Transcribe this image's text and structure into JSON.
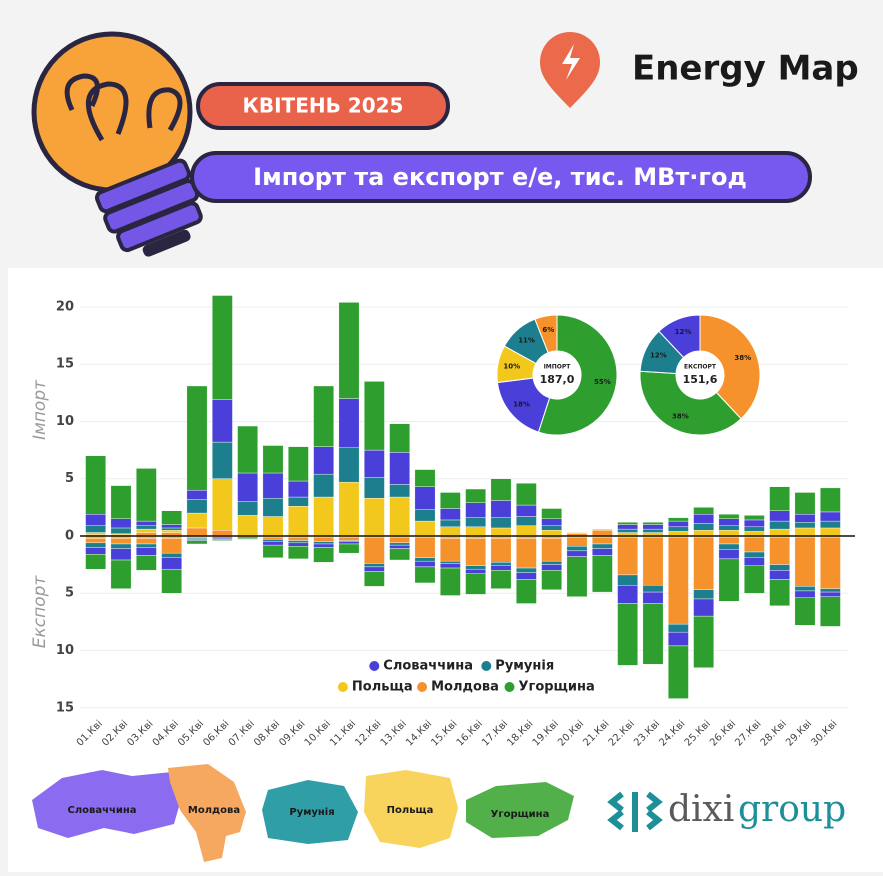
{
  "header": {
    "brand": "Energy Map",
    "badge": "КВІТЕНЬ 2025",
    "title": "Імпорт та експорт е/е, тис. МВт·год"
  },
  "chart_data": [
    {
      "type": "bar",
      "y_label_top": "Імпорт",
      "y_label_bottom": "Експорт",
      "categories": [
        "01.Кві",
        "02.Кві",
        "03.Кві",
        "04.Кві",
        "05.Кві",
        "06.Кві",
        "07.Кві",
        "08.Кві",
        "09.Кві",
        "10.Кві",
        "11.Кві",
        "12.Кві",
        "13.Кві",
        "14.Кві",
        "15.Кві",
        "16.Кві",
        "17.Кві",
        "18.Кві",
        "19.Кві",
        "20.Кві",
        "21.Кві",
        "22.Кві",
        "23.Кві",
        "24.Кві",
        "25.Кві",
        "26.Кві",
        "27.Кві",
        "28.Кві",
        "29.Кві",
        "30.Кві"
      ],
      "ylim": [
        -15,
        21
      ],
      "yticks": [
        20,
        15,
        10,
        5,
        0,
        {
          "value": -5,
          "label": "5"
        },
        {
          "value": -10,
          "label": "10"
        },
        {
          "value": -15,
          "label": "15"
        }
      ],
      "grid": true,
      "series": [
        {
          "name": "Словаччина",
          "color": "#4a3fd8",
          "values": [
            1.0,
            0.8,
            0.4,
            0.3,
            0.8,
            3.7,
            2.5,
            2.2,
            1.4,
            2.4,
            4.3,
            2.4,
            2.8,
            2.0,
            1.0,
            1.3,
            1.5,
            1.0,
            0.6,
            0.0,
            0.0,
            0.4,
            0.4,
            0.5,
            0.8,
            0.6,
            0.6,
            0.9,
            0.7,
            0.8
          ],
          "export_values": [
            -0.6,
            -1.0,
            -0.7,
            -1.0,
            -0.1,
            -0.1,
            -0.1,
            -0.3,
            -0.3,
            -0.3,
            -0.2,
            -0.4,
            -0.3,
            -0.5,
            -0.4,
            -0.4,
            -0.4,
            -0.6,
            -0.5,
            -0.5,
            -0.6,
            -1.6,
            -1.0,
            -1.2,
            -1.5,
            -0.8,
            -0.7,
            -0.8,
            -0.6,
            -0.4
          ]
        },
        {
          "name": "Румунія",
          "color": "#1d7f8d",
          "values": [
            0.6,
            0.5,
            0.3,
            0.2,
            1.2,
            3.2,
            1.2,
            1.6,
            0.8,
            2.0,
            3.0,
            1.8,
            1.1,
            1.0,
            0.6,
            0.8,
            0.9,
            0.8,
            0.4,
            0.0,
            0.0,
            0.3,
            0.3,
            0.4,
            0.6,
            0.4,
            0.4,
            0.7,
            0.5,
            0.6
          ],
          "export_values": [
            -0.4,
            -0.4,
            -0.3,
            -0.4,
            -0.1,
            -0.1,
            0.0,
            -0.2,
            -0.2,
            -0.2,
            -0.1,
            -0.3,
            -0.2,
            -0.3,
            -0.2,
            -0.3,
            -0.3,
            -0.4,
            -0.3,
            -0.4,
            -0.4,
            -0.9,
            -0.6,
            -0.7,
            -0.8,
            -0.5,
            -0.5,
            -0.5,
            -0.4,
            -0.3
          ]
        },
        {
          "name": "Польща",
          "color": "#f3c81c",
          "values": [
            0.2,
            0.1,
            0.3,
            0.2,
            1.3,
            4.5,
            1.8,
            1.7,
            2.6,
            3.4,
            4.7,
            3.3,
            3.4,
            1.3,
            0.8,
            0.8,
            0.7,
            0.9,
            0.5,
            0.1,
            0.1,
            0.3,
            0.3,
            0.4,
            0.5,
            0.5,
            0.4,
            0.6,
            0.7,
            0.7
          ],
          "export_values": [
            -0.2,
            -0.2,
            -0.2,
            -0.2,
            -0.1,
            0.0,
            0.0,
            -0.1,
            -0.1,
            -0.1,
            -0.1,
            -0.1,
            -0.1,
            -0.1,
            -0.2,
            -0.2,
            -0.2,
            -0.2,
            -0.2,
            -0.1,
            -0.1,
            -0.1,
            -0.1,
            -0.1,
            -0.1,
            -0.1,
            -0.1,
            -0.1,
            -0.1,
            -0.1
          ]
        },
        {
          "name": "Молдова",
          "color": "#f6922b",
          "values": [
            0.1,
            0.1,
            0.3,
            0.3,
            0.7,
            0.5,
            0.0,
            0.0,
            0.0,
            0.0,
            0.0,
            0.0,
            0.0,
            0.0,
            0.0,
            0.0,
            0.0,
            0.0,
            0.0,
            0.2,
            0.5,
            0.0,
            0.0,
            0.0,
            0.0,
            0.0,
            0.0,
            0.0,
            0.0,
            0.0
          ],
          "export_values": [
            -0.4,
            -0.5,
            -0.5,
            -1.3,
            -0.1,
            -0.1,
            -0.1,
            -0.2,
            -0.3,
            -0.4,
            -0.3,
            -2.3,
            -0.5,
            -1.8,
            -2.0,
            -2.4,
            -2.1,
            -2.6,
            -2.0,
            -0.8,
            -0.6,
            -3.3,
            -4.2,
            -7.6,
            -4.6,
            -0.6,
            -1.3,
            -2.4,
            -4.3,
            -4.5
          ]
        },
        {
          "name": "Угорщина",
          "color": "#2e9f2f",
          "values": [
            5.1,
            2.9,
            4.6,
            1.2,
            9.1,
            9.1,
            4.1,
            2.4,
            3.0,
            5.3,
            8.4,
            6.0,
            2.5,
            1.5,
            1.4,
            1.2,
            1.9,
            1.9,
            0.9,
            0.0,
            0.0,
            0.2,
            0.2,
            0.3,
            0.6,
            0.4,
            0.4,
            2.1,
            1.9,
            2.1
          ],
          "export_values": [
            -1.3,
            -2.5,
            -1.3,
            -2.1,
            -0.3,
            -0.1,
            -0.1,
            -1.1,
            -1.1,
            -1.3,
            -0.8,
            -1.3,
            -1.0,
            -1.4,
            -2.4,
            -1.8,
            -1.6,
            -2.1,
            -1.7,
            -3.5,
            -3.2,
            -5.4,
            -5.3,
            -4.6,
            -4.5,
            -3.7,
            -2.4,
            -2.3,
            -2.4,
            -2.6
          ]
        }
      ]
    },
    {
      "type": "donut",
      "center_label": "ІМПОРТ",
      "total": {
        "value": 187.0,
        "label": "187,0"
      },
      "values": [
        55,
        18,
        10,
        11,
        6
      ],
      "value_labels": [
        "55%",
        "18%",
        "10%",
        "11%",
        "6%"
      ],
      "colors": [
        "#2e9f2f",
        "#4a3fd8",
        "#f3c81c",
        "#1d7f8d",
        "#f6922b"
      ]
    },
    {
      "type": "donut",
      "center_label": "ЕКСПОРТ",
      "total": {
        "value": 151.6,
        "label": "151,6"
      },
      "values": [
        38,
        38,
        12,
        12
      ],
      "value_labels": [
        "38%",
        "38%",
        "12%",
        "12%"
      ],
      "colors": [
        "#f6922b",
        "#2e9f2f",
        "#1d7f8d",
        "#4a3fd8"
      ]
    }
  ],
  "maps": [
    "Словаччина",
    "Молдова",
    "Румунія",
    "Польща",
    "Угорщина"
  ],
  "logo": {
    "part1": "dixi",
    "part2": "group"
  }
}
